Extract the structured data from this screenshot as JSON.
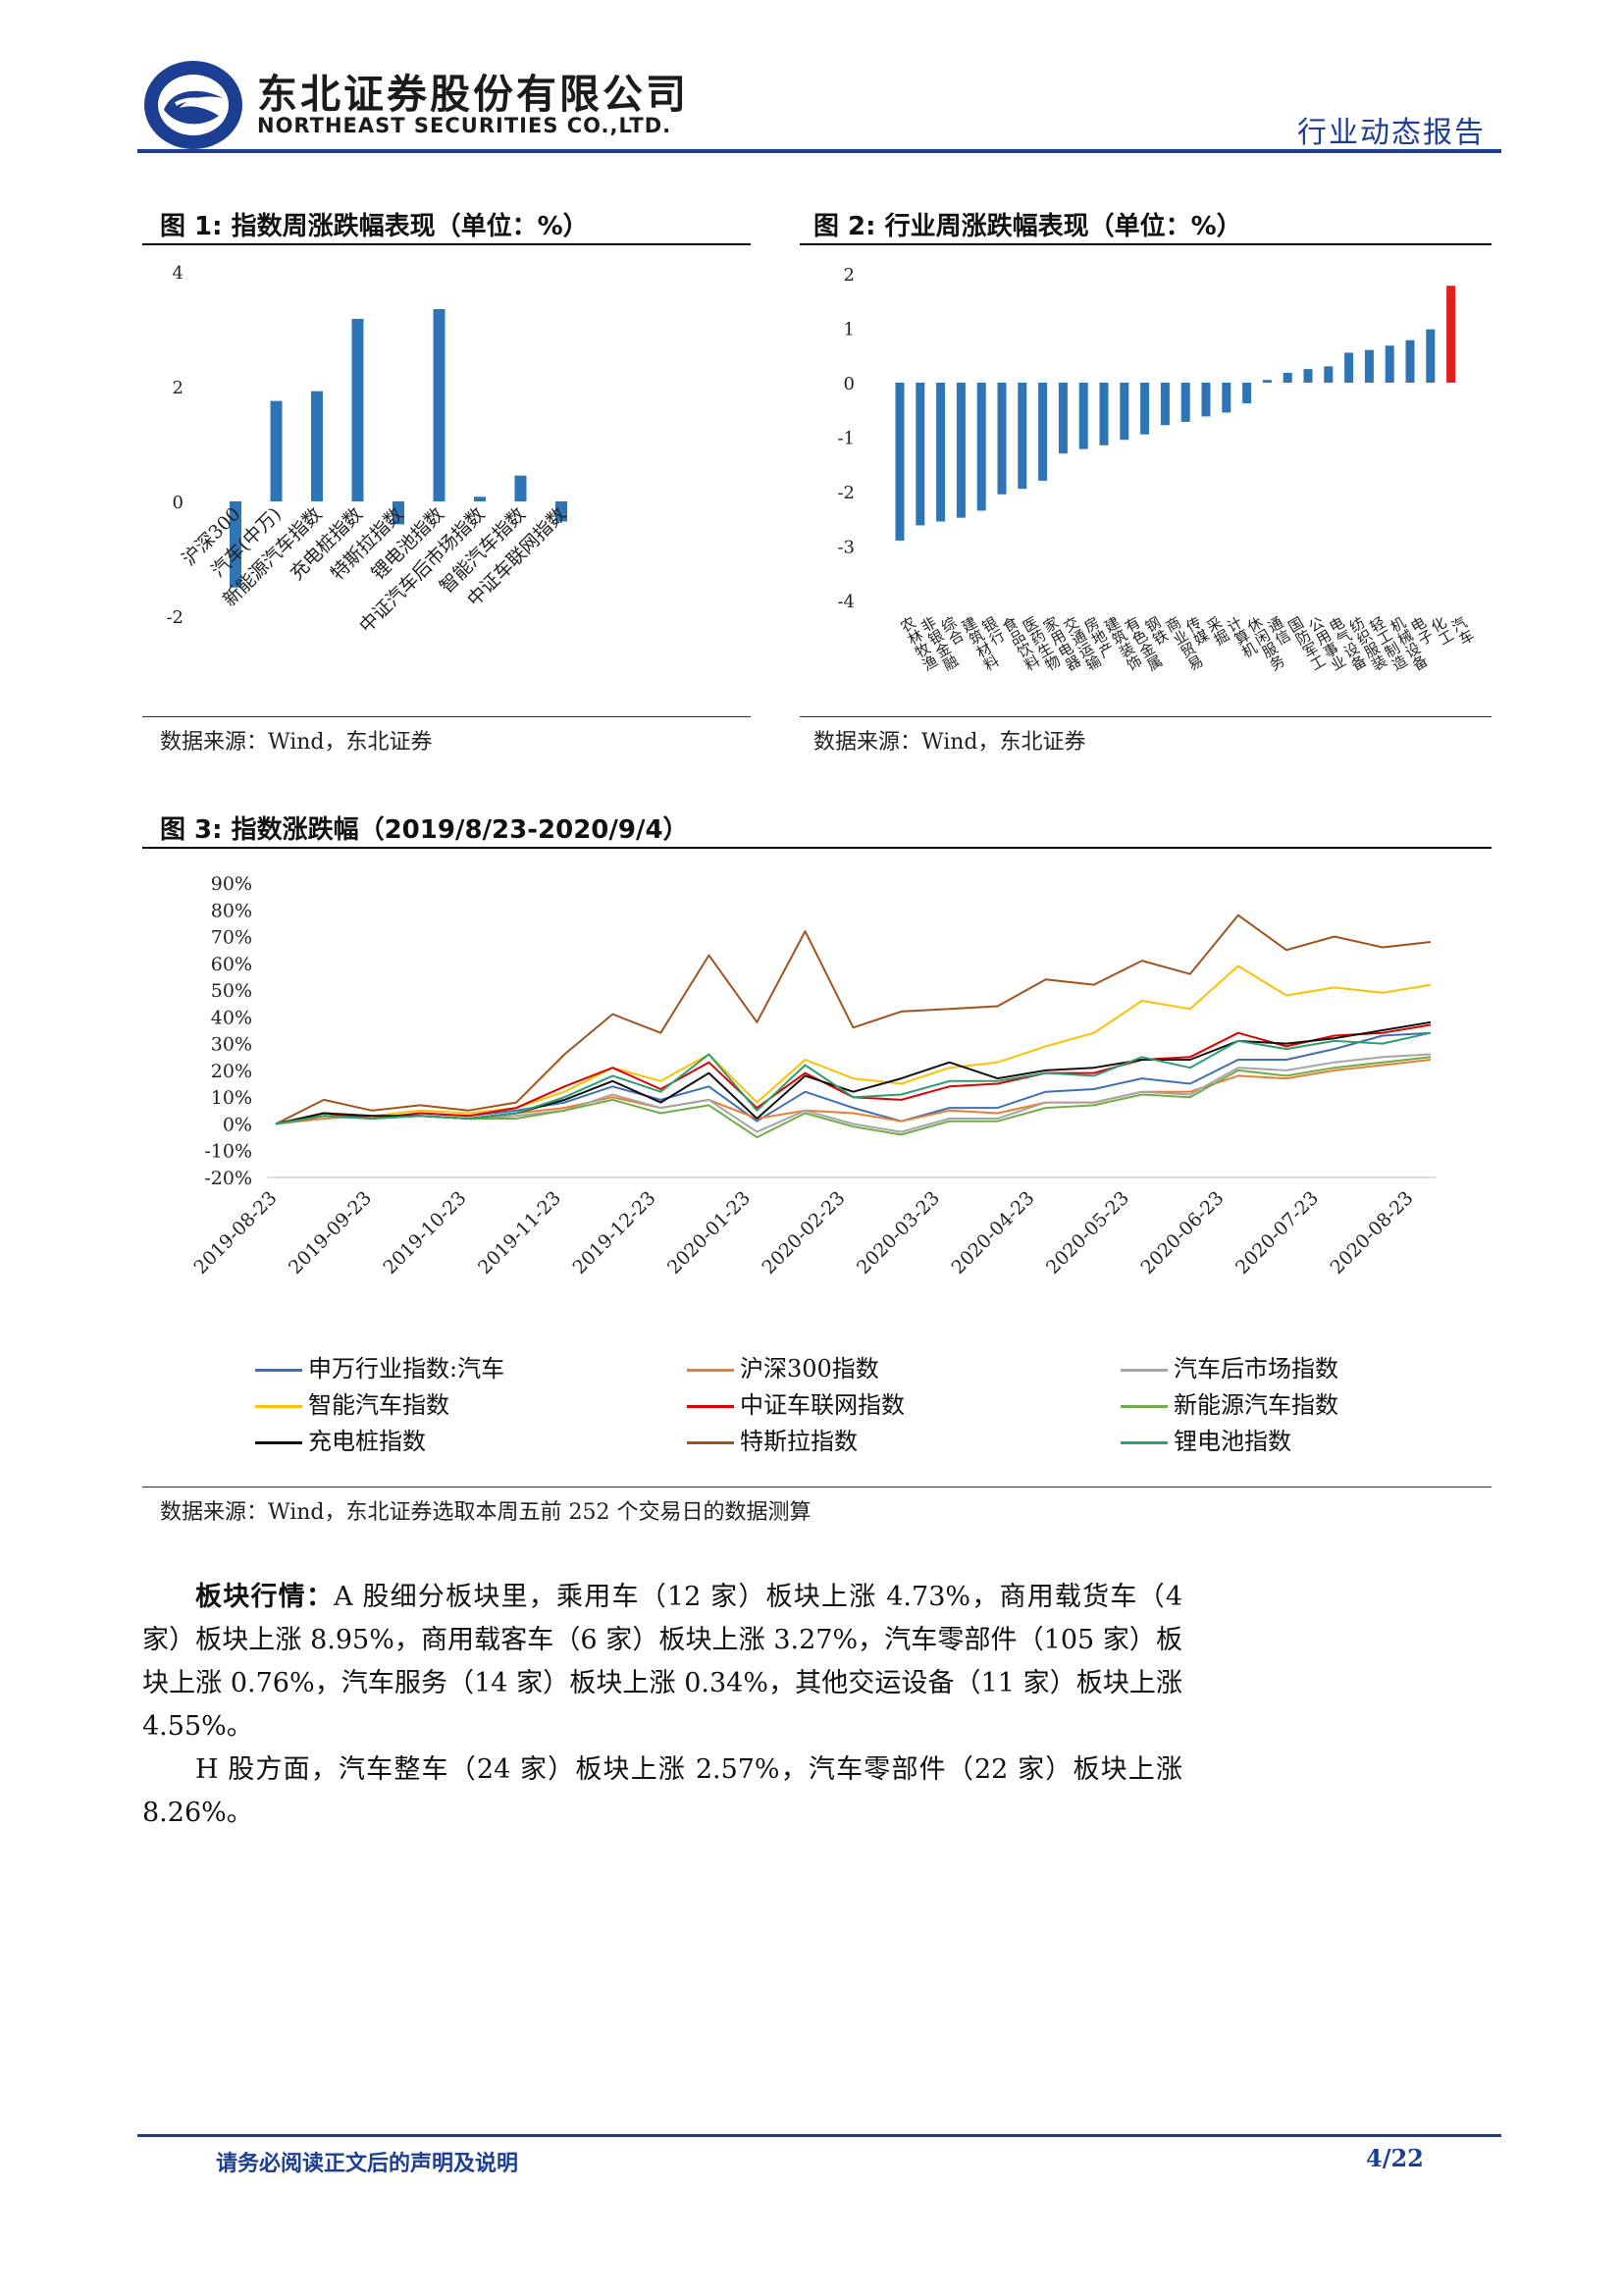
{
  "header": {
    "company_cn": "东北证券股份有限公司",
    "company_en": "NORTHEAST SECURITIES CO.,LTD.",
    "report_type": "行业动态报告"
  },
  "figure1": {
    "title": "图 1: 指数周涨跌幅表现（单位：%）",
    "source": "数据来源：Wind，东北证券"
  },
  "figure2": {
    "title": "图 2: 行业周涨跌幅表现（单位：%）",
    "source": "数据来源：Wind，东北证券"
  },
  "figure3": {
    "title": "图 3: 指数涨跌幅（2019/8/23-2020/9/4）",
    "source": "数据来源：Wind，东北证券选取本周五前 252 个交易日的数据测算"
  },
  "body": {
    "p1_label": "板块行情：",
    "p1_text": "A 股细分板块里，乘用车（12 家）板块上涨 4.73%，商用载货车（4 家）板块上涨 8.95%，商用载客车（6 家）板块上涨 3.27%，汽车零部件（105 家）板块上涨 0.76%，汽车服务（14 家）板块上涨 0.34%，其他交运设备（11 家）板块上涨 4.55%。",
    "p2_text": "H 股方面，汽车整车（24 家）板块上涨 2.57%，汽车零部件（22 家）板块上涨 8.26%。"
  },
  "footer": {
    "disclaimer": "请务必阅读正文后的声明及说明",
    "page": "4/22"
  },
  "colors": {
    "brand_blue": "#1d3f93",
    "bar_blue": "#2e75b6",
    "bar_red": "#e0201b"
  },
  "chart_data": [
    {
      "type": "bar",
      "categories": [
        "沪深300",
        "汽车(中万)",
        "新能源汽车指数",
        "充电桩指数",
        "特斯拉指数",
        "锂电池指数",
        "中证汽车后市场指数",
        "智能汽车指数",
        "中证车联网指数"
      ],
      "values": [
        -1.5,
        1.75,
        1.92,
        3.18,
        -0.4,
        3.35,
        0.08,
        0.45,
        -0.35
      ],
      "yticks": [
        "4",
        "2",
        "0",
        "-2"
      ],
      "ylim": [
        -2,
        4
      ]
    },
    {
      "type": "bar",
      "categories": [
        "农林牧渔",
        "非银金融",
        "综合",
        "建筑材料",
        "银行",
        "食品饮料",
        "医药生物",
        "家用电器",
        "交通运输",
        "房地产",
        "建筑装饰",
        "有色金属",
        "钢铁",
        "商业贸易",
        "传媒",
        "采掘",
        "计算机",
        "休闲服务",
        "通信",
        "国防军工",
        "公用事业",
        "电气设备",
        "纺织服装",
        "轻工制造",
        "机械设备",
        "电子",
        "化工",
        "汽车"
      ],
      "values": [
        -2.9,
        -2.62,
        -2.55,
        -2.48,
        -2.35,
        -2.05,
        -1.95,
        -1.8,
        -1.3,
        -1.22,
        -1.15,
        -1.05,
        -0.95,
        -0.78,
        -0.72,
        -0.62,
        -0.55,
        -0.38,
        0.05,
        0.18,
        0.25,
        0.3,
        0.55,
        0.6,
        0.68,
        0.78,
        0.98,
        1.78
      ],
      "highlight_index": 27,
      "yticks": [
        "2",
        "1",
        "0",
        "-1",
        "-2",
        "-3",
        "-4"
      ],
      "ylim": [
        -4,
        2
      ]
    },
    {
      "type": "line",
      "x_ticks": [
        "2019-08-23",
        "2019-09-23",
        "2019-10-23",
        "2019-11-23",
        "2019-12-23",
        "2020-01-23",
        "2020-02-23",
        "2020-03-23",
        "2020-04-23",
        "2020-05-23",
        "2020-06-23",
        "2020-07-23",
        "2020-08-23"
      ],
      "yticks": [
        "90%",
        "80%",
        "70%",
        "60%",
        "50%",
        "40%",
        "30%",
        "20%",
        "10%",
        "0%",
        "-10%",
        "-20%"
      ],
      "ylim": [
        -20,
        90
      ],
      "series": [
        {
          "name": "申万行业指数:汽车",
          "color": "#3f6fb5",
          "values": [
            0,
            3,
            2,
            4,
            3,
            5,
            8,
            14,
            9,
            14,
            1,
            12,
            6,
            1,
            6,
            6,
            12,
            13,
            17,
            15,
            24,
            24,
            28,
            33,
            34
          ]
        },
        {
          "name": "沪深300指数",
          "color": "#ed7d31",
          "values": [
            0,
            2,
            3,
            3,
            2,
            4,
            6,
            10,
            6,
            9,
            2,
            5,
            4,
            1,
            5,
            4,
            8,
            8,
            12,
            12,
            18,
            17,
            20,
            22,
            24
          ]
        },
        {
          "name": "汽车后市场指数",
          "color": "#a5a5a5",
          "values": [
            0,
            3,
            2,
            3,
            2,
            3,
            5,
            11,
            6,
            9,
            -3,
            5,
            0,
            -3,
            2,
            2,
            8,
            8,
            12,
            11,
            21,
            20,
            23,
            25,
            26
          ]
        },
        {
          "name": "智能汽车指数",
          "color": "#ffc000",
          "values": [
            0,
            4,
            3,
            5,
            4,
            6,
            12,
            21,
            16,
            26,
            8,
            24,
            17,
            15,
            21,
            23,
            29,
            34,
            46,
            43,
            59,
            48,
            51,
            49,
            52
          ]
        },
        {
          "name": "中证车联网指数",
          "color": "#e00000",
          "values": [
            0,
            4,
            2,
            4,
            3,
            6,
            14,
            21,
            13,
            23,
            6,
            19,
            10,
            9,
            14,
            15,
            19,
            19,
            24,
            25,
            34,
            29,
            33,
            34,
            37
          ]
        },
        {
          "name": "新能源汽车指数",
          "color": "#70ad47",
          "values": [
            0,
            3,
            2,
            3,
            2,
            2,
            5,
            9,
            4,
            7,
            -5,
            4,
            -1,
            -4,
            1,
            1,
            6,
            7,
            11,
            10,
            20,
            18,
            21,
            23,
            25
          ]
        },
        {
          "name": "充电桩指数",
          "color": "#111111",
          "values": [
            0,
            4,
            3,
            3,
            2,
            4,
            9,
            16,
            8,
            19,
            2,
            18,
            12,
            17,
            23,
            17,
            20,
            21,
            24,
            24,
            31,
            30,
            32,
            35,
            38
          ]
        },
        {
          "name": "特斯拉指数",
          "color": "#a0531f",
          "values": [
            0,
            9,
            5,
            7,
            5,
            8,
            26,
            41,
            34,
            63,
            38,
            72,
            36,
            42,
            43,
            44,
            54,
            52,
            61,
            56,
            78,
            65,
            70,
            66,
            68
          ]
        },
        {
          "name": "锂电池指数",
          "color": "#2e9e6e",
          "values": [
            0,
            3,
            2,
            3,
            2,
            4,
            10,
            18,
            12,
            26,
            5,
            22,
            10,
            11,
            16,
            16,
            19,
            18,
            25,
            21,
            31,
            28,
            31,
            30,
            34
          ]
        }
      ]
    }
  ]
}
